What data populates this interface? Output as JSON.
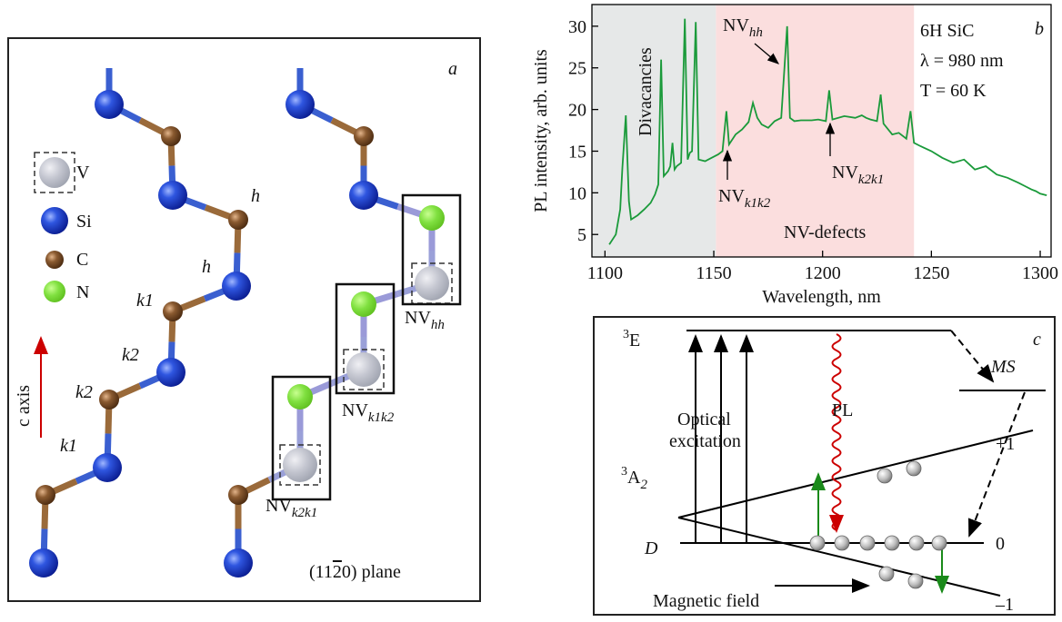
{
  "panel_a": {
    "panel_label": "a",
    "legend": [
      "V",
      "Si",
      "C",
      "N"
    ],
    "site_labels": [
      "h",
      "h",
      "k1",
      "k2",
      "k2",
      "k1"
    ],
    "axis_label": "c axis",
    "defects": [
      {
        "text": "NV",
        "sub": "hh"
      },
      {
        "text": "NV",
        "sub": "k1k2"
      },
      {
        "text": "NV",
        "sub": "k2k1"
      }
    ],
    "plane": {
      "pre": "(11",
      "bar": "2",
      "post": "0) plane"
    }
  },
  "chart_data": {
    "type": "line",
    "panel_label": "b",
    "xlabel": "Wavelength, nm",
    "ylabel": "PL intensity, arb. units",
    "xlim": [
      1094,
      1305
    ],
    "ylim": [
      2.3,
      32.6
    ],
    "xticks": [
      1100,
      1150,
      1200,
      1250,
      1300
    ],
    "yticks": [
      5,
      10,
      15,
      20,
      25,
      30
    ],
    "spans": [
      {
        "from": 1094,
        "to": 1151,
        "color": "#e6e8e8"
      },
      {
        "from": 1151,
        "to": 1242,
        "color": "#fbdede"
      }
    ],
    "annotations": [
      {
        "text": "Divacancies"
      },
      {
        "text": "NV-defects"
      },
      {
        "text": "NV",
        "sub": "hh"
      },
      {
        "text": "NV",
        "sub": "k1k2"
      },
      {
        "text": "NV",
        "sub": "k2k1"
      }
    ],
    "notes": [
      "6H SiC",
      "λ = 980 nm",
      "T = 60 K"
    ],
    "x": [
      1102,
      1105,
      1107,
      1108,
      1109.6,
      1111,
      1112,
      1115,
      1118,
      1121,
      1123,
      1124.5,
      1125.8,
      1127,
      1129,
      1130,
      1131,
      1132,
      1133,
      1135,
      1136.7,
      1138,
      1139,
      1140,
      1141.7,
      1143,
      1146,
      1149,
      1152,
      1154,
      1155.8,
      1157,
      1160,
      1163,
      1166,
      1168,
      1170,
      1172,
      1175,
      1178,
      1181,
      1183.7,
      1185,
      1187,
      1190,
      1195,
      1198,
      1201.5,
      1203,
      1204.5,
      1210,
      1215,
      1218,
      1220,
      1222,
      1225,
      1226.7,
      1228,
      1232,
      1235,
      1238.5,
      1240.4,
      1242,
      1245,
      1250,
      1255,
      1260,
      1265,
      1270,
      1275,
      1280,
      1285,
      1290,
      1293,
      1296,
      1298,
      1300,
      1303
    ],
    "series": [
      {
        "name": "PL",
        "color": "#1a9a3a",
        "values": [
          3.8,
          5,
          8,
          13,
          19.3,
          9,
          6.8,
          7.3,
          8,
          8.8,
          9.8,
          11,
          26,
          12,
          12.6,
          13.2,
          16,
          12.8,
          13.2,
          13.6,
          30.9,
          14,
          14.8,
          15,
          30.5,
          14,
          13.8,
          14.2,
          14.6,
          15,
          19.8,
          15.8,
          17,
          17.6,
          18.5,
          20.8,
          19,
          18.2,
          17.8,
          18.6,
          19,
          30,
          19,
          18.6,
          18.7,
          18.7,
          18.8,
          18.6,
          22.3,
          18.8,
          19.2,
          19,
          19.3,
          19,
          18.8,
          18.6,
          21.8,
          18.3,
          17,
          17.2,
          16.5,
          19.8,
          16,
          15.6,
          15,
          14.2,
          13.6,
          14,
          12.8,
          13.2,
          12.2,
          11.8,
          11.2,
          10.8,
          10.4,
          10.2,
          9.9,
          9.7
        ]
      }
    ]
  },
  "panel_c": {
    "panel_label": "c",
    "excited": {
      "sup": "3",
      "text": "E"
    },
    "ground": {
      "sup": "3",
      "text": "A",
      "sub": "2"
    },
    "ms": "MS",
    "excitation": [
      "Optical",
      "excitation"
    ],
    "pl": "PL",
    "d": "D",
    "levels": [
      "+1",
      "0",
      "–1"
    ],
    "field": "Magnetic field"
  }
}
